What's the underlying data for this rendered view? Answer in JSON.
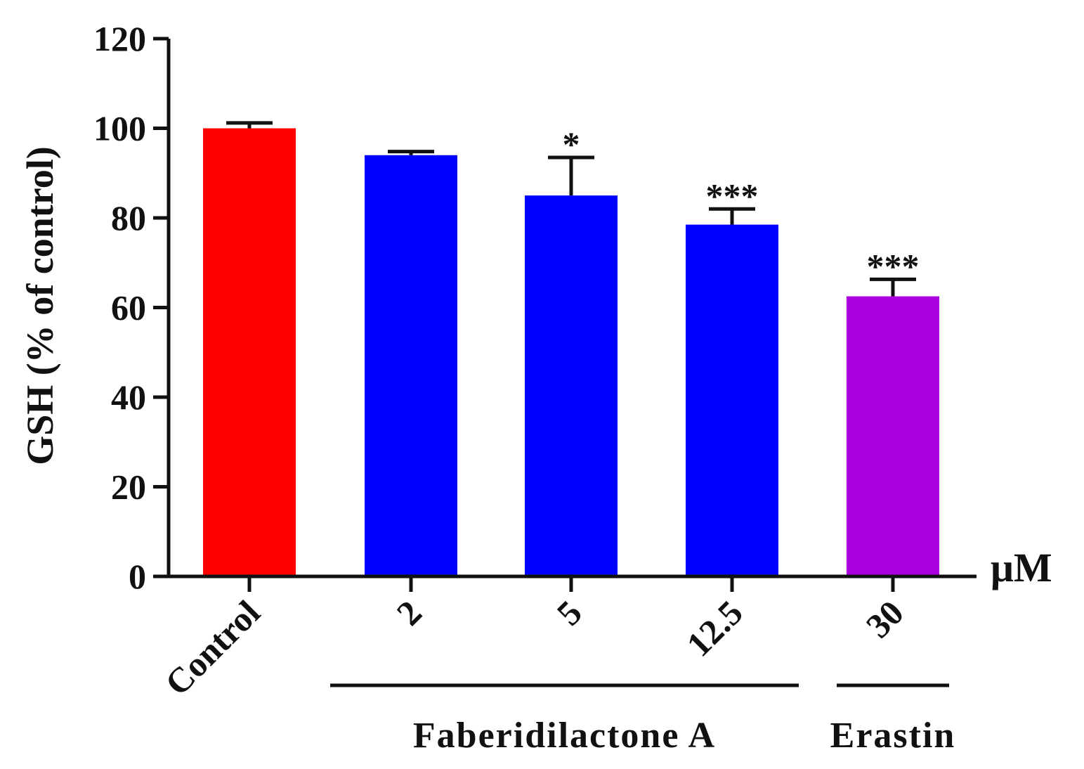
{
  "chart_data": {
    "type": "bar",
    "ylabel": "GSH (% of control)",
    "ylim": [
      0,
      120
    ],
    "yticks": [
      0,
      20,
      40,
      60,
      80,
      100,
      120
    ],
    "unit_label": "μM",
    "categories": [
      "Control",
      "2",
      "5",
      "12.5",
      "30"
    ],
    "values": [
      100,
      94,
      85,
      78.5,
      62.5
    ],
    "errors": [
      1.2,
      0.8,
      8.5,
      3.5,
      3.8
    ],
    "significance": [
      "",
      "",
      "*",
      "***",
      "***"
    ],
    "colors": [
      "#ff0000",
      "#0000ff",
      "#0000ff",
      "#0000ff",
      "#aa00e0"
    ],
    "groups": [
      {
        "label": "Faberidilactone A",
        "from": 1,
        "to": 3
      },
      {
        "label": "Erastin",
        "from": 4,
        "to": 4
      }
    ],
    "grid": false,
    "legend": "none"
  }
}
